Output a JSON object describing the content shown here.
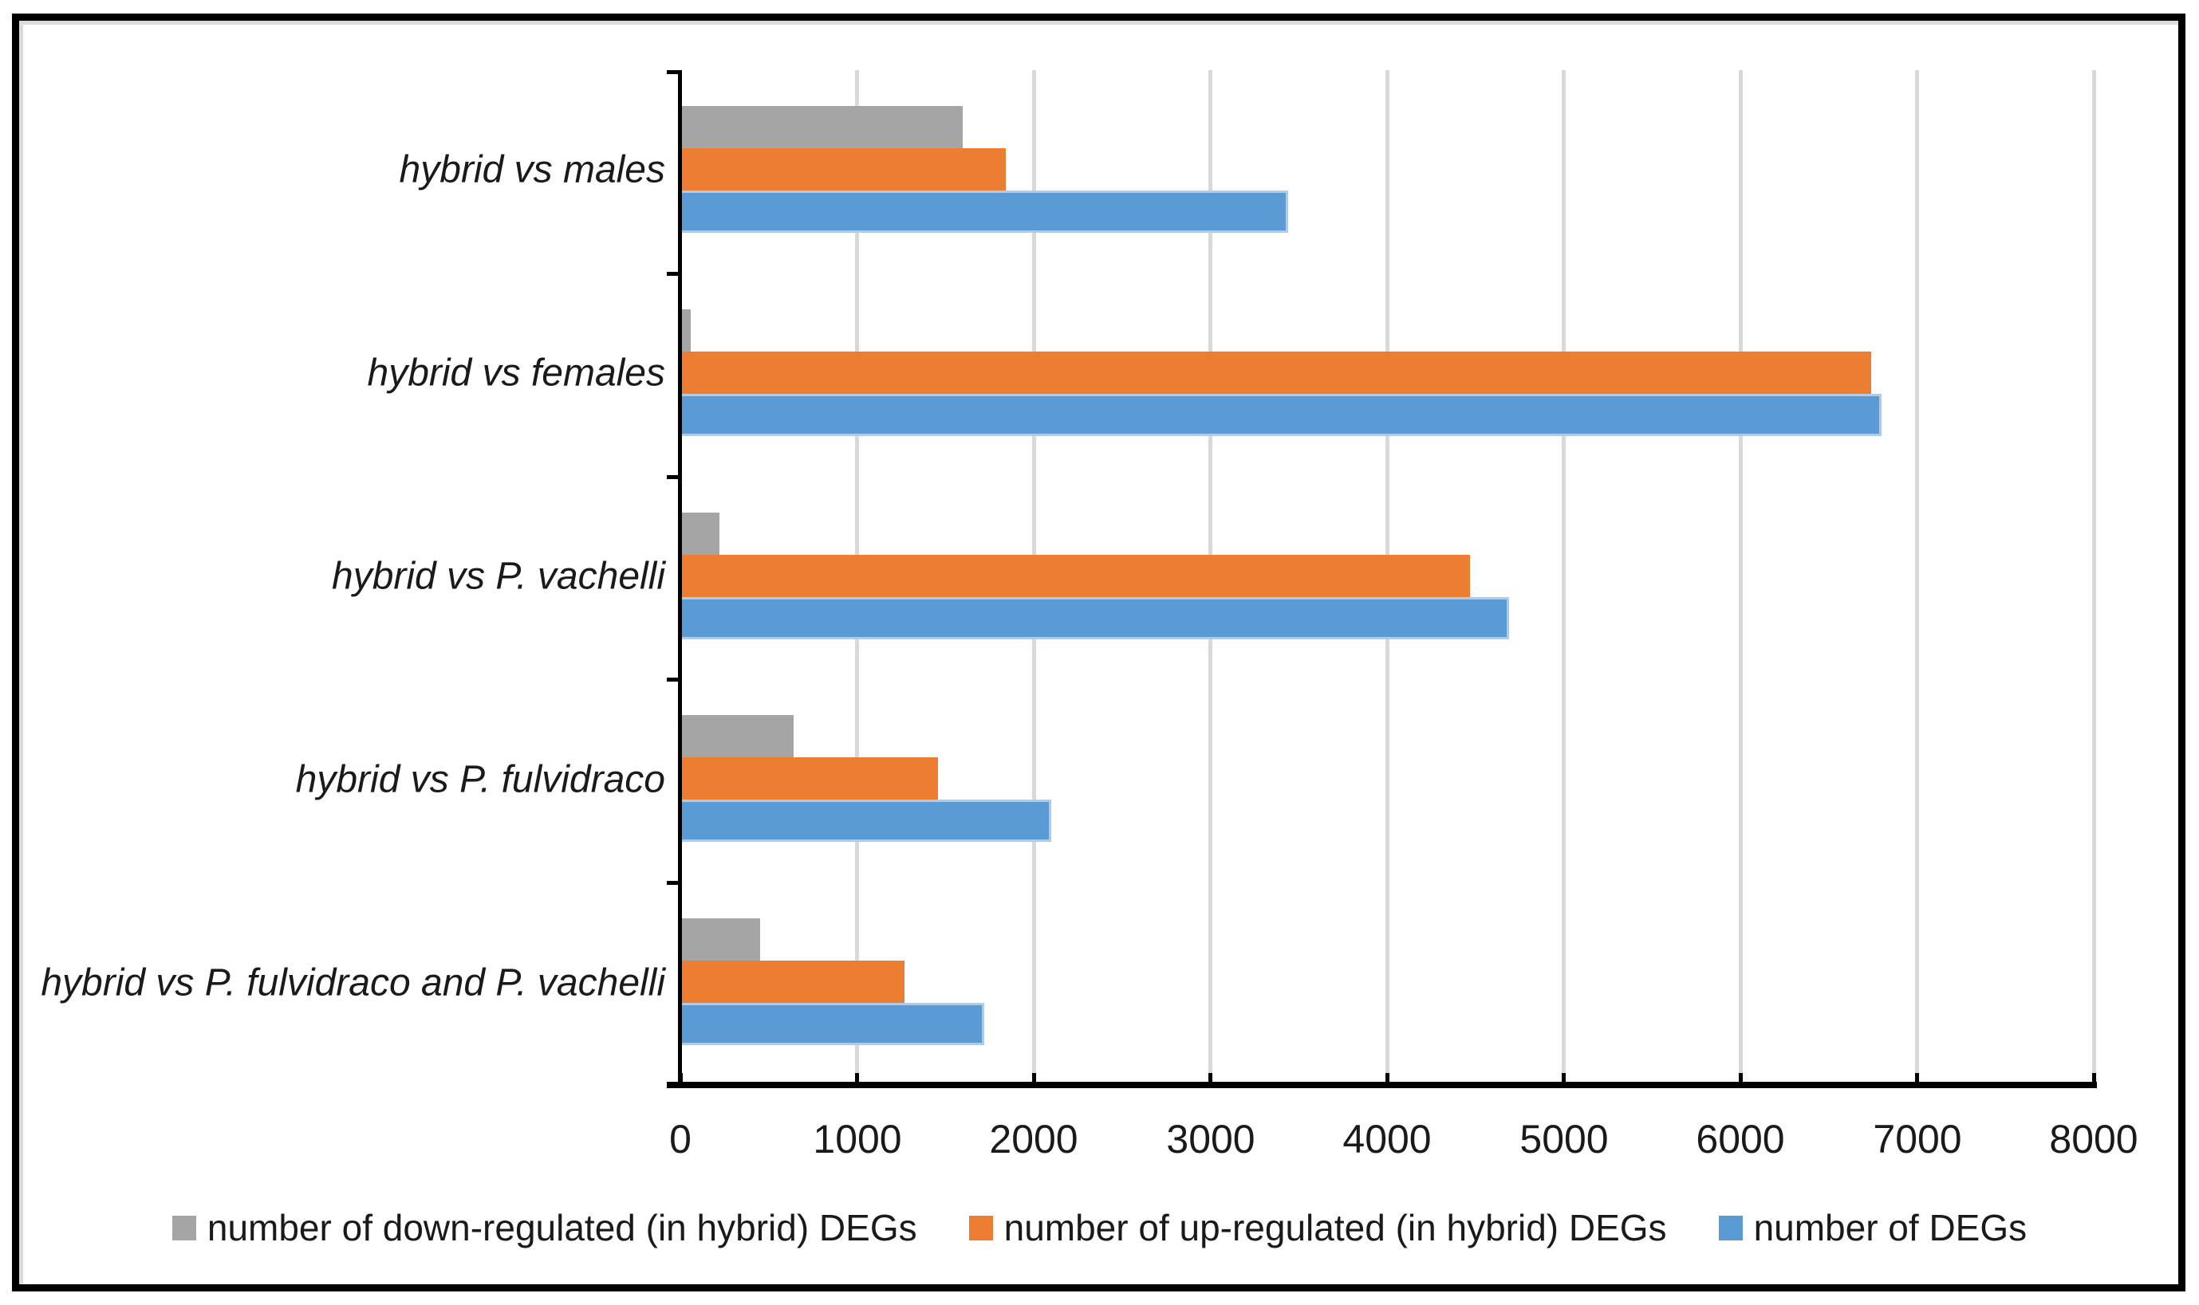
{
  "figure": {
    "background": "#ffffff",
    "border_color": "#000000"
  },
  "chart_data": {
    "type": "bar",
    "orientation": "horizontal",
    "title": "",
    "xlabel": "",
    "ylabel": "",
    "xlim": [
      0,
      8000
    ],
    "x_ticks": [
      0,
      1000,
      2000,
      3000,
      4000,
      5000,
      6000,
      7000,
      8000
    ],
    "grid": true,
    "gridline_color": "#d9d9d9",
    "legend_position": "bottom",
    "categories": [
      "hybrid vs males",
      "hybrid vs females",
      "hybrid vs P. vachelli",
      "hybrid vs P. fulvidraco",
      "hybrid vs P. fulvidraco and P. vachelli"
    ],
    "series": [
      {
        "name": "number of down-regulated (in hybrid) DEGs",
        "color": "#a5a5a5",
        "values": [
          1600,
          60,
          220,
          640,
          450
        ]
      },
      {
        "name": "number of up-regulated (in hybrid) DEGs",
        "color": "#ed7d31",
        "values": [
          1840,
          6740,
          4470,
          1460,
          1270
        ]
      },
      {
        "name": "number of DEGs",
        "color": "#5b9bd5",
        "values": [
          3440,
          6800,
          4690,
          2100,
          1720
        ]
      }
    ]
  }
}
